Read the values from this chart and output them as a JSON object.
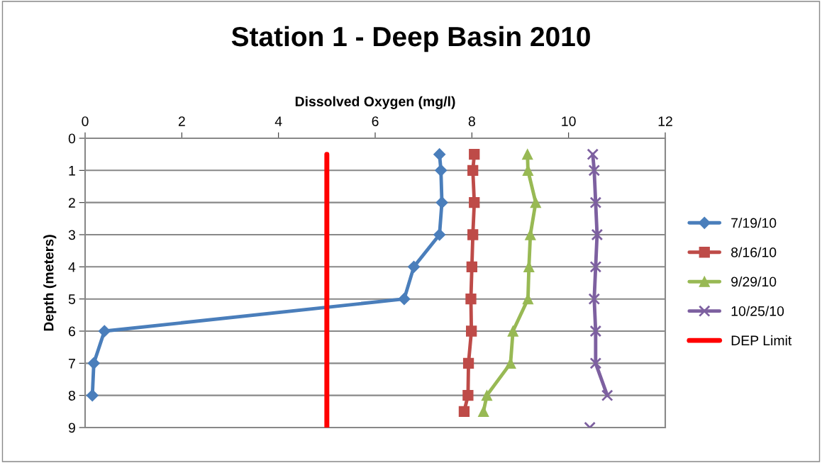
{
  "chart_data": {
    "type": "line",
    "title": "Station 1 - Deep Basin 2010",
    "xlabel": "Dissolved Oxygen (mg/l)",
    "ylabel": "Depth (meters)",
    "xlim": [
      0,
      12
    ],
    "xticks": [
      0,
      2,
      4,
      6,
      8,
      10,
      12
    ],
    "ylim": [
      9,
      0
    ],
    "yticks": [
      0,
      1,
      2,
      3,
      4,
      5,
      6,
      7,
      8,
      9
    ],
    "grid": "y",
    "legend": "right",
    "line_style": "solid",
    "series": [
      {
        "name": "7/19/10",
        "color": "#4a7ebb",
        "marker": "diamond",
        "x": [
          7.33,
          7.36,
          7.38,
          7.33,
          6.8,
          6.6,
          0.4,
          0.18,
          0.15
        ],
        "values": [
          0.5,
          1,
          2,
          3,
          4,
          5,
          6,
          7,
          8
        ]
      },
      {
        "name": "8/16/10",
        "color": "#be4b48",
        "marker": "square",
        "x": [
          8.05,
          8.02,
          8.05,
          8.02,
          8.0,
          7.98,
          7.99,
          7.93,
          7.92,
          7.84
        ],
        "values": [
          0.5,
          1,
          2,
          3,
          4,
          5,
          6,
          7,
          8,
          8.5
        ]
      },
      {
        "name": "9/29/10",
        "color": "#98b954",
        "marker": "triangle",
        "x": [
          9.15,
          9.16,
          9.32,
          9.21,
          9.18,
          9.16,
          8.85,
          8.8,
          8.31,
          8.24
        ],
        "values": [
          0.5,
          1,
          2,
          3,
          4,
          5,
          6,
          7,
          8,
          8.5
        ]
      },
      {
        "name": "10/25/10",
        "color": "#7d60a0",
        "marker": "cross",
        "x": [
          10.5,
          10.53,
          10.56,
          10.59,
          10.56,
          10.53,
          10.56,
          10.56,
          10.8,
          null,
          10.44
        ],
        "values": [
          0.5,
          1,
          2,
          3,
          4,
          5,
          6,
          7,
          8,
          null,
          9
        ]
      },
      {
        "name": "DEP Limit",
        "color": "#ff0000",
        "marker": "none",
        "x": [
          5,
          5
        ],
        "values": [
          0.5,
          9
        ]
      }
    ]
  }
}
